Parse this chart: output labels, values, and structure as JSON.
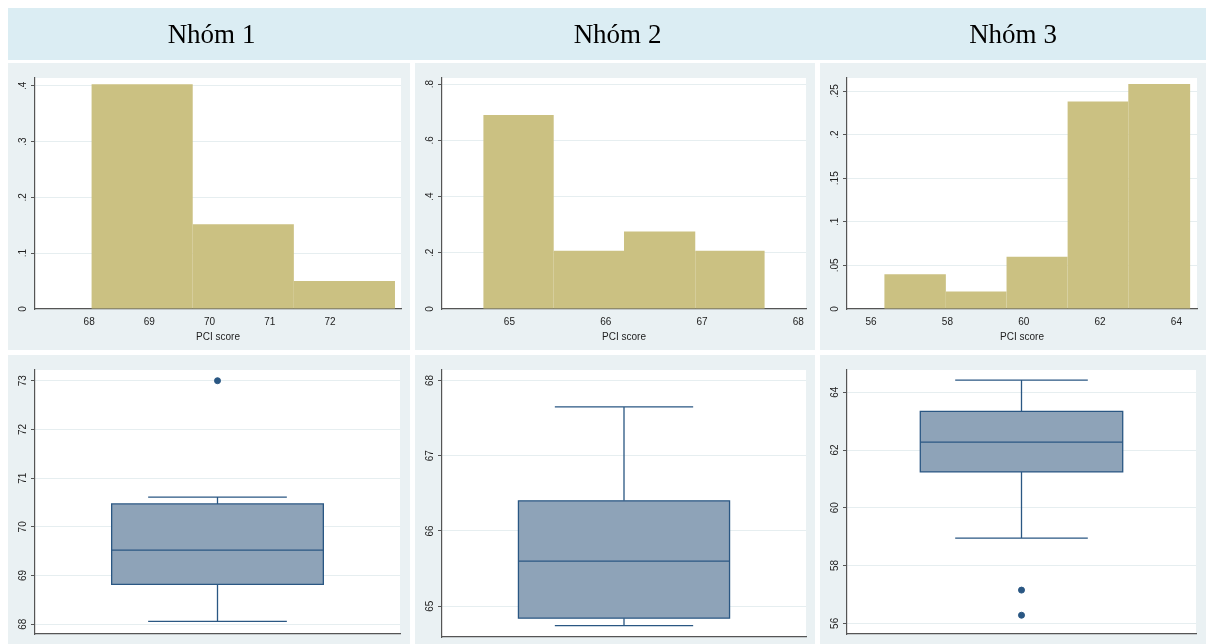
{
  "chart_data": [
    {
      "type": "histogram",
      "title": "Nhóm 1",
      "xlabel": "PCI score",
      "bins": [
        68.04,
        69.72,
        71.4,
        73.08
      ],
      "values": [
        0.403,
        0.152,
        0.05
      ],
      "color": "#cbc182",
      "xlim": [
        67.1,
        73.18
      ],
      "xticks": [
        68,
        69,
        70,
        71,
        72
      ],
      "ylim": [
        0,
        0.414
      ],
      "yticks": [
        0,
        {
          "value": 0.1,
          "label": ".1"
        },
        {
          "value": 0.2,
          "label": ".2"
        },
        {
          "value": 0.3,
          "label": ".3"
        },
        {
          "value": 0.4,
          "label": ".4"
        }
      ],
      "grid": "y"
    },
    {
      "type": "histogram",
      "title": "Nhóm 2",
      "xlabel": "PCI score",
      "bins": [
        64.73,
        65.46,
        66.19,
        66.93,
        67.65
      ],
      "values": [
        0.69,
        0.207,
        0.276,
        0.207
      ],
      "color": "#cbc182",
      "xlim": [
        64.3,
        68.08
      ],
      "xticks": [
        65,
        66,
        67,
        68
      ],
      "ylim": [
        0,
        0.822
      ],
      "yticks": [
        0,
        {
          "value": 0.2,
          "label": ".2"
        },
        {
          "value": 0.4,
          "label": ".4"
        },
        {
          "value": 0.6,
          "label": ".6"
        },
        {
          "value": 0.8,
          "label": ".8"
        }
      ],
      "grid": "y"
    },
    {
      "type": "histogram",
      "title": "Nhóm 3",
      "xlabel": "PCI score",
      "bins": [
        56.35,
        57.96,
        59.55,
        61.15,
        62.74,
        64.36
      ],
      "values": [
        0.04,
        0.02,
        0.06,
        0.238,
        0.258
      ],
      "color": "#cbc182",
      "xlim": [
        55.37,
        64.54
      ],
      "xticks": [
        56,
        58,
        60,
        62,
        64
      ],
      "ylim": [
        0,
        0.265
      ],
      "yticks": [
        0,
        {
          "value": 0.05,
          "label": ".05"
        },
        {
          "value": 0.1,
          "label": ".1"
        },
        {
          "value": 0.15,
          "label": ".15"
        },
        {
          "value": 0.2,
          "label": ".2"
        },
        {
          "value": 0.25,
          "label": ".25"
        }
      ],
      "grid": "y"
    },
    {
      "type": "box",
      "categories": [
        null
      ],
      "boxes": [
        {
          "low": 68.06,
          "q1": 68.82,
          "median": 69.52,
          "q3": 70.47,
          "high": 70.61,
          "outliers": [
            73.0
          ]
        }
      ],
      "color": "#8ea3b8",
      "ylim": [
        67.8,
        73.22
      ],
      "yticks": [
        68,
        69,
        70,
        71,
        72,
        73
      ],
      "grid": "y",
      "tick_labels": "y"
    },
    {
      "type": "box",
      "categories": [
        null
      ],
      "boxes": [
        {
          "low": 64.74,
          "q1": 64.84,
          "median": 65.6,
          "q3": 66.4,
          "high": 67.65
        }
      ],
      "color": "#8ea3b8",
      "ylim": [
        64.59,
        68.14
      ],
      "yticks": [
        65,
        66,
        67,
        68
      ],
      "grid": "y",
      "tick_labels": "y"
    },
    {
      "type": "box",
      "categories": [
        null
      ],
      "boxes": [
        {
          "low": 58.95,
          "q1": 61.24,
          "median": 62.27,
          "q3": 63.34,
          "high": 64.42,
          "outliers": [
            57.15,
            56.28
          ]
        }
      ],
      "color": "#8ea3b8",
      "ylim": [
        55.63,
        64.77
      ],
      "yticks": [
        56,
        58,
        60,
        62,
        64
      ],
      "grid": "y",
      "tick_labels": "y"
    }
  ]
}
